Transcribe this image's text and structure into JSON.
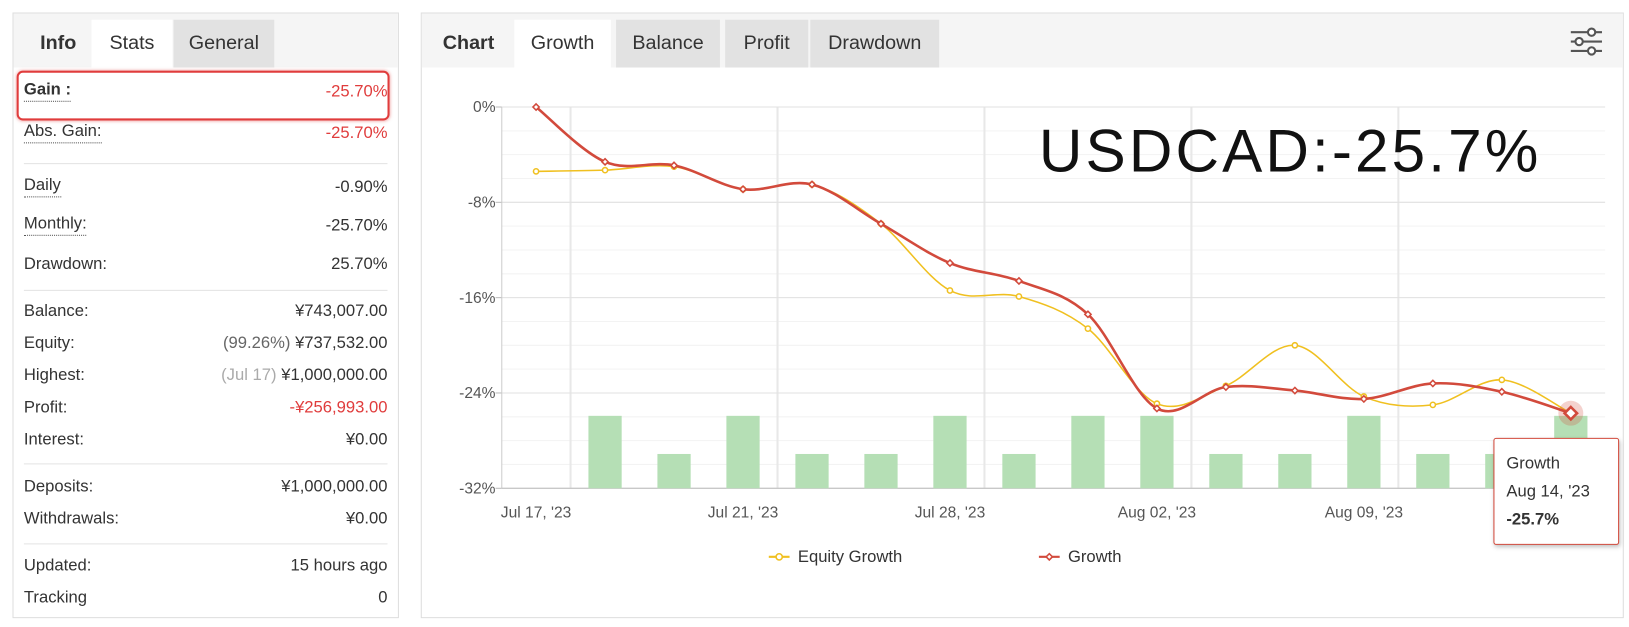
{
  "info_panel": {
    "tabs": [
      "Info",
      "Stats",
      "General"
    ],
    "groups": [
      [
        {
          "label": "Gain :",
          "value": "-25.70%",
          "color": "#e03c3c",
          "highlighted": true,
          "underline": true
        },
        {
          "label": "Abs. Gain:",
          "value": "-25.70%",
          "color": "#e03c3c",
          "underline": true
        }
      ],
      [
        {
          "label": "Daily",
          "value": "-0.90%",
          "underline": true
        },
        {
          "label": "Monthly:",
          "value": "-25.70%",
          "underline": true
        },
        {
          "label": "Drawdown:",
          "value": "25.70%"
        }
      ],
      [
        {
          "label": "Balance:",
          "value": "¥743,007.00"
        },
        {
          "label": "Equity:",
          "note": "(99.26%)",
          "value": "¥737,532.00"
        },
        {
          "label": "Highest:",
          "note": "(Jul 17)",
          "value": "¥1,000,000.00"
        },
        {
          "label": "Profit:",
          "value": "-¥256,993.00",
          "color": "#e03c3c"
        },
        {
          "label": "Interest:",
          "value": "¥0.00"
        }
      ],
      [
        {
          "label": "Deposits:",
          "value": "¥1,000,000.00"
        },
        {
          "label": "Withdrawals:",
          "value": "¥0.00"
        }
      ],
      [
        {
          "label": "Updated:",
          "value": "15 hours ago"
        },
        {
          "label": "Tracking",
          "value": "0"
        }
      ]
    ]
  },
  "chart_panel": {
    "tabs": [
      "Chart",
      "Growth",
      "Balance",
      "Profit",
      "Drawdown"
    ]
  },
  "chart_data": {
    "type": "line",
    "annotation": "USDCAD:-25.7%",
    "categories": [
      "Jul 17, '23",
      null,
      null,
      "Jul 21, '23",
      null,
      null,
      "Jul 28, '23",
      null,
      null,
      "Aug 02, '23",
      null,
      null,
      "Aug 09, '23",
      null,
      null,
      null
    ],
    "ylim": [
      -32,
      0
    ],
    "yticks": [
      {
        "value": 0,
        "label": "0%"
      },
      {
        "value": -8,
        "label": "-8%"
      },
      {
        "value": -16,
        "label": "-16%"
      },
      {
        "value": -24,
        "label": "-24%"
      },
      {
        "value": -32,
        "label": "-32%"
      }
    ],
    "y2lim": [
      0,
      10
    ],
    "grid": true,
    "series": [
      {
        "name": "Equity Growth",
        "color": "#f0c020",
        "values": [
          -5.4,
          -5.3,
          -5.0,
          -6.9,
          -6.5,
          -9.8,
          -15.4,
          -15.9,
          -18.6,
          -24.9,
          -23.4,
          -20.0,
          -24.3,
          -25.0,
          -22.9,
          -25.7
        ]
      },
      {
        "name": "Growth",
        "color": "#d24a3c",
        "values": [
          0,
          -4.6,
          -4.9,
          -6.9,
          -6.5,
          -9.8,
          -13.1,
          -14.6,
          -17.4,
          -25.3,
          -23.5,
          -23.8,
          -24.5,
          -23.2,
          -23.9,
          -25.7
        ]
      },
      {
        "type": "bar",
        "axis": "y2",
        "color": "#b5dfb5",
        "values": [
          null,
          1.9,
          0.9,
          1.9,
          0.9,
          0.9,
          1.9,
          0.9,
          1.9,
          1.9,
          0.9,
          0.9,
          1.9,
          0.9,
          0.9,
          1.9
        ]
      }
    ],
    "tooltip": {
      "series": "Growth",
      "date": "Aug 14, '23",
      "value": "-25.7%"
    }
  }
}
